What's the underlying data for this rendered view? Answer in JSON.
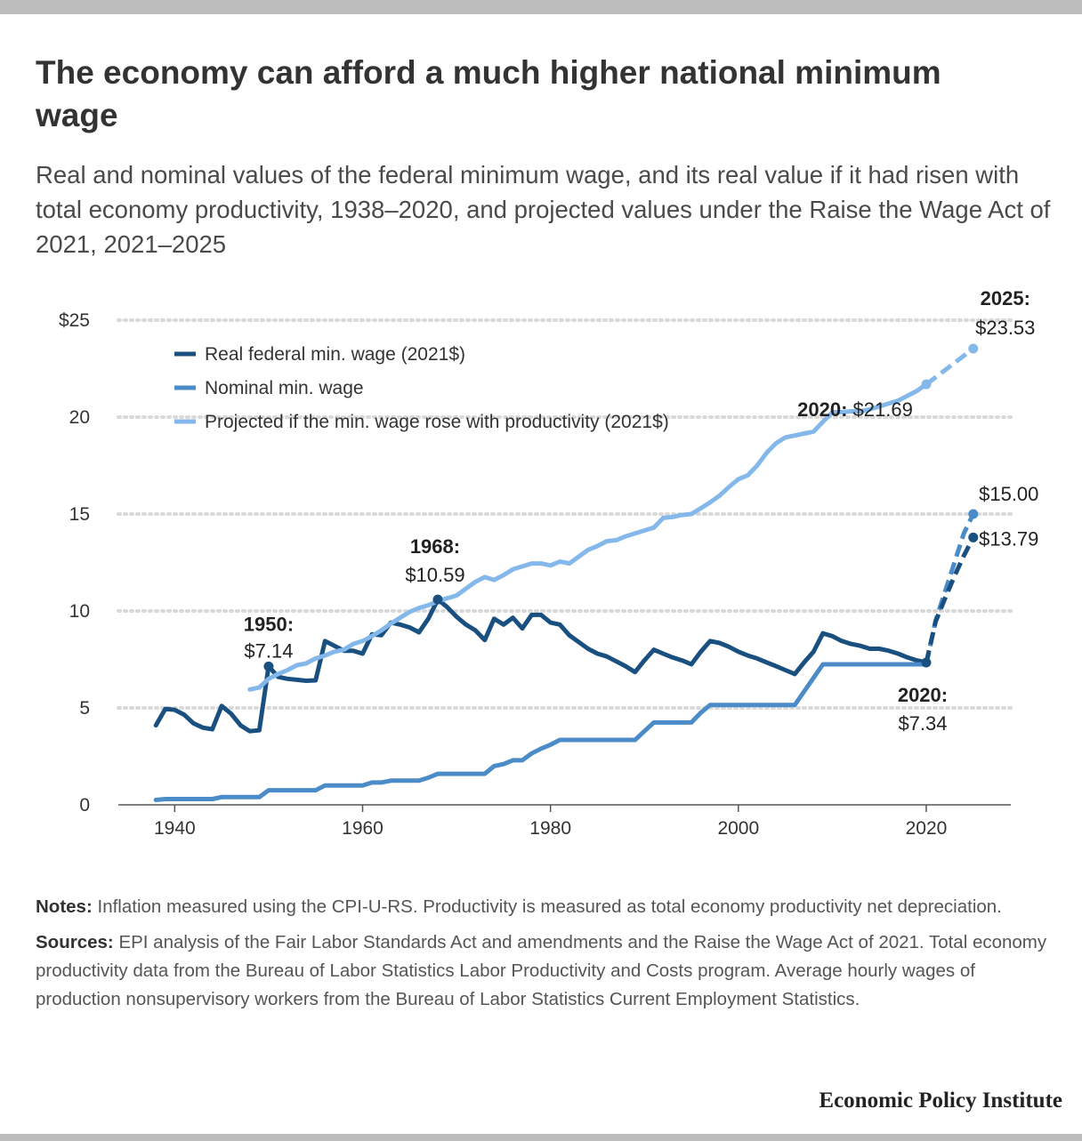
{
  "header": {
    "title": "The economy can afford a much higher national minimum wage",
    "subtitle": "Real and nominal values of the federal minimum wage, and its real value if it had risen with total economy productivity, 1938–2020, and projected values under the Raise the Wage Act of 2021, 2021–2025"
  },
  "notes": {
    "notes_label": "Notes:",
    "notes_text": "Inflation measured using the CPI-U-RS. Productivity is measured as total economy productivity net depreciation.",
    "sources_label": "Sources:",
    "sources_text": "EPI analysis of the Fair Labor Standards Act and amendments and the Raise the Wage Act of 2021. Total economy productivity data from the Bureau of Labor Statistics Labor Productivity and Costs program. Average hourly wages of production nonsupervisory workers from the Bureau of Labor Statistics Current Employment Statistics."
  },
  "logo": {
    "text": "Economic Policy Institute"
  },
  "chart_data": {
    "type": "line",
    "xlim": [
      1934,
      2029
    ],
    "ylim": [
      0,
      25
    ],
    "grid": "horizontal dotted",
    "legend_position": "top-left",
    "x_ticks": [
      1940,
      1960,
      1980,
      2000,
      2020
    ],
    "x_tick_labels": [
      "1940",
      "1960",
      "1980",
      "2000",
      "2020"
    ],
    "y_ticks": [
      0,
      5,
      10,
      15,
      20,
      25
    ],
    "y_tick_labels": [
      "0",
      "5",
      "10",
      "15",
      "20",
      "$25"
    ],
    "series": [
      {
        "name": "Real federal min. wage (2021$)",
        "color": "#1a5080",
        "x": [
          1938,
          1939,
          1940,
          1941,
          1942,
          1943,
          1944,
          1945,
          1946,
          1947,
          1948,
          1949,
          1950,
          1951,
          1952,
          1953,
          1954,
          1955,
          1956,
          1957,
          1958,
          1959,
          1960,
          1961,
          1962,
          1963,
          1964,
          1965,
          1966,
          1967,
          1968,
          1969,
          1970,
          1971,
          1972,
          1973,
          1974,
          1975,
          1976,
          1977,
          1978,
          1979,
          1980,
          1981,
          1982,
          1983,
          1984,
          1985,
          1986,
          1987,
          1988,
          1989,
          1990,
          1991,
          1992,
          1993,
          1994,
          1995,
          1996,
          1997,
          1998,
          1999,
          2000,
          2001,
          2002,
          2003,
          2004,
          2005,
          2006,
          2007,
          2008,
          2009,
          2010,
          2011,
          2012,
          2013,
          2014,
          2015,
          2016,
          2017,
          2018,
          2019,
          2020
        ],
        "y": [
          4.1,
          4.95,
          4.9,
          4.65,
          4.2,
          3.98,
          3.9,
          5.1,
          4.7,
          4.1,
          3.8,
          3.85,
          7.14,
          6.6,
          6.5,
          6.45,
          6.4,
          6.42,
          8.45,
          8.2,
          7.95,
          7.95,
          7.8,
          8.8,
          8.75,
          9.4,
          9.3,
          9.15,
          8.9,
          9.6,
          10.59,
          10.2,
          9.7,
          9.3,
          9.0,
          8.5,
          9.6,
          9.3,
          9.65,
          9.1,
          9.8,
          9.8,
          9.4,
          9.3,
          8.75,
          8.4,
          8.05,
          7.8,
          7.65,
          7.4,
          7.15,
          6.85,
          7.45,
          8.0,
          7.8,
          7.6,
          7.45,
          7.25,
          7.9,
          8.45,
          8.35,
          8.15,
          7.9,
          7.7,
          7.55,
          7.35,
          7.15,
          6.95,
          6.75,
          7.35,
          7.9,
          8.85,
          8.7,
          8.45,
          8.3,
          8.2,
          8.05,
          8.05,
          7.95,
          7.8,
          7.6,
          7.45,
          7.34
        ]
      },
      {
        "name": "Nominal min. wage",
        "color": "#4b8cc8",
        "x": [
          1938,
          1939,
          1940,
          1941,
          1942,
          1943,
          1944,
          1945,
          1946,
          1947,
          1948,
          1949,
          1950,
          1951,
          1952,
          1953,
          1954,
          1955,
          1956,
          1957,
          1958,
          1959,
          1960,
          1961,
          1962,
          1963,
          1964,
          1965,
          1966,
          1967,
          1968,
          1969,
          1970,
          1971,
          1972,
          1973,
          1974,
          1975,
          1976,
          1977,
          1978,
          1979,
          1980,
          1981,
          1982,
          1983,
          1984,
          1985,
          1986,
          1987,
          1988,
          1989,
          1990,
          1991,
          1992,
          1993,
          1994,
          1995,
          1996,
          1997,
          1998,
          1999,
          2000,
          2001,
          2002,
          2003,
          2004,
          2005,
          2006,
          2007,
          2008,
          2009,
          2010,
          2011,
          2012,
          2013,
          2014,
          2015,
          2016,
          2017,
          2018,
          2019,
          2020
        ],
        "y": [
          0.25,
          0.3,
          0.3,
          0.3,
          0.3,
          0.3,
          0.3,
          0.4,
          0.4,
          0.4,
          0.4,
          0.4,
          0.75,
          0.75,
          0.75,
          0.75,
          0.75,
          0.75,
          1.0,
          1.0,
          1.0,
          1.0,
          1.0,
          1.15,
          1.15,
          1.25,
          1.25,
          1.25,
          1.25,
          1.4,
          1.6,
          1.6,
          1.6,
          1.6,
          1.6,
          1.6,
          2.0,
          2.1,
          2.3,
          2.3,
          2.65,
          2.9,
          3.1,
          3.35,
          3.35,
          3.35,
          3.35,
          3.35,
          3.35,
          3.35,
          3.35,
          3.35,
          3.8,
          4.25,
          4.25,
          4.25,
          4.25,
          4.25,
          4.75,
          5.15,
          5.15,
          5.15,
          5.15,
          5.15,
          5.15,
          5.15,
          5.15,
          5.15,
          5.15,
          5.85,
          6.55,
          7.25,
          7.25,
          7.25,
          7.25,
          7.25,
          7.25,
          7.25,
          7.25,
          7.25,
          7.25,
          7.25,
          7.25
        ]
      },
      {
        "name": "Projected if the min. wage rose with productivity (2021$)",
        "color": "#84b8ea",
        "x": [
          1948,
          1949,
          1950,
          1951,
          1952,
          1953,
          1954,
          1955,
          1956,
          1957,
          1958,
          1959,
          1960,
          1961,
          1962,
          1963,
          1964,
          1965,
          1966,
          1967,
          1968,
          1969,
          1970,
          1971,
          1972,
          1973,
          1974,
          1975,
          1976,
          1977,
          1978,
          1979,
          1980,
          1981,
          1982,
          1983,
          1984,
          1985,
          1986,
          1987,
          1988,
          1989,
          1990,
          1991,
          1992,
          1993,
          1994,
          1995,
          1996,
          1997,
          1998,
          1999,
          2000,
          2001,
          2002,
          2003,
          2004,
          2005,
          2006,
          2007,
          2008,
          2009,
          2010,
          2011,
          2012,
          2013,
          2014,
          2015,
          2016,
          2017,
          2018,
          2019,
          2020
        ],
        "y": [
          5.95,
          6.05,
          6.5,
          6.75,
          6.95,
          7.2,
          7.3,
          7.55,
          7.7,
          7.9,
          8.0,
          8.3,
          8.45,
          8.7,
          9.0,
          9.35,
          9.65,
          9.95,
          10.15,
          10.3,
          10.5,
          10.65,
          10.8,
          11.15,
          11.5,
          11.75,
          11.6,
          11.85,
          12.15,
          12.3,
          12.45,
          12.45,
          12.35,
          12.55,
          12.45,
          12.8,
          13.15,
          13.35,
          13.6,
          13.65,
          13.85,
          14.0,
          14.15,
          14.3,
          14.8,
          14.85,
          14.95,
          15.0,
          15.3,
          15.6,
          15.95,
          16.4,
          16.8,
          17.0,
          17.5,
          18.15,
          18.65,
          18.95,
          19.05,
          19.15,
          19.25,
          19.75,
          20.25,
          20.25,
          20.3,
          20.3,
          20.4,
          20.55,
          20.7,
          20.85,
          21.1,
          21.35,
          21.69
        ]
      }
    ],
    "projections": [
      {
        "name": "Projected if the min. wage rose with productivity (2021$)",
        "x": [
          2020,
          2025
        ],
        "y": [
          21.69,
          23.53
        ]
      },
      {
        "name": "Nominal min. wage",
        "x": [
          2020,
          2021,
          2022,
          2023,
          2024,
          2025
        ],
        "y": [
          7.25,
          9.5,
          11.0,
          12.5,
          14.0,
          15.0
        ]
      },
      {
        "name": "Real federal min. wage (2021$)",
        "x": [
          2020,
          2021,
          2022,
          2023,
          2024,
          2025
        ],
        "y": [
          7.34,
          9.45,
          10.65,
          11.8,
          12.85,
          13.79
        ]
      }
    ],
    "annotations": [
      {
        "id": "a1950",
        "x": 1950,
        "y": 7.14,
        "bold": "1950:",
        "value": "$7.14",
        "series": 0
      },
      {
        "id": "a1968",
        "x": 1968,
        "y": 10.59,
        "bold": "1968:",
        "value": "$10.59",
        "series": 0
      },
      {
        "id": "a2020r",
        "x": 2020,
        "y": 7.34,
        "bold": "2020:",
        "value": "$7.34",
        "series": 0
      },
      {
        "id": "a2020p",
        "x": 2020,
        "y": 21.69,
        "bold": "2020:",
        "value": "$21.69",
        "series": 2
      },
      {
        "id": "a2025p",
        "x": 2025,
        "y": 23.53,
        "bold": "2025:",
        "value": "$23.53",
        "series": 2
      },
      {
        "id": "a2025n",
        "x": 2025,
        "y": 15.0,
        "bold": "",
        "value": "$15.00",
        "series": 1
      },
      {
        "id": "a2025r",
        "x": 2025,
        "y": 13.79,
        "bold": "",
        "value": "$13.79",
        "series": 0
      }
    ]
  }
}
